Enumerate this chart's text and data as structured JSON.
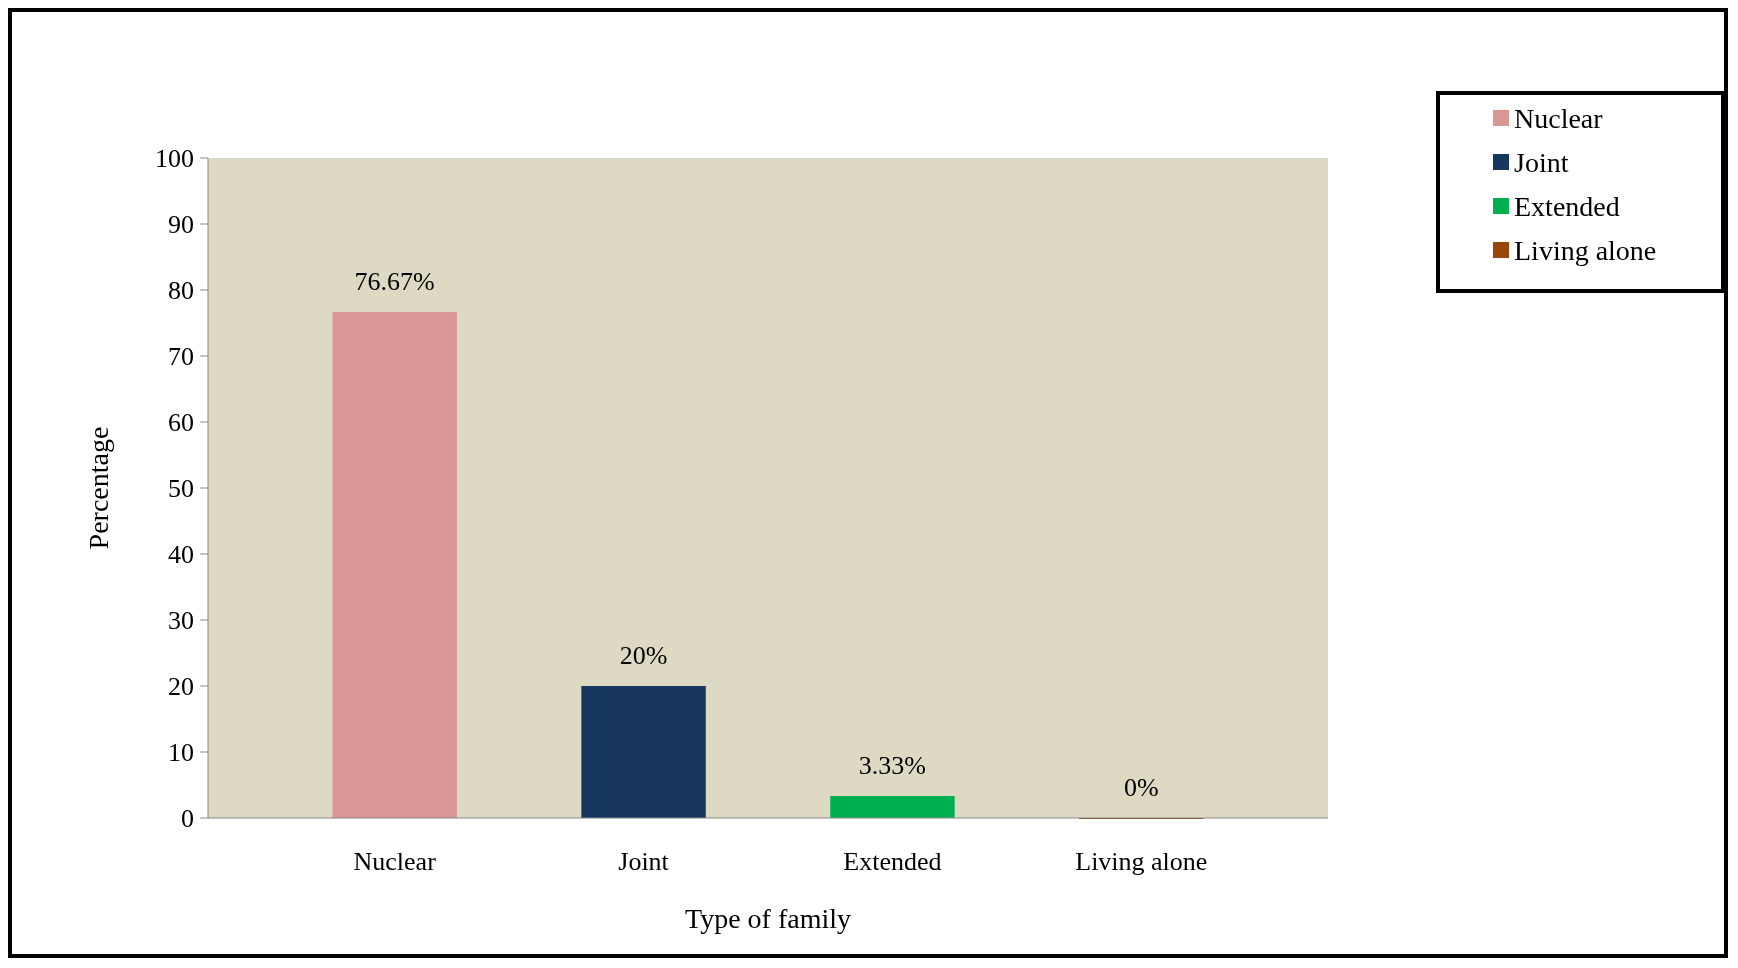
{
  "chart_data": {
    "type": "bar",
    "categories": [
      "Nuclear",
      "Joint",
      "Extended",
      "Living alone"
    ],
    "series": [
      {
        "name": "Nuclear",
        "color": "#da9694",
        "values": [
          76.67,
          null,
          null,
          null
        ],
        "value_labels": [
          "76.67%",
          null,
          null,
          null
        ]
      },
      {
        "name": "Joint",
        "color": "#17375e",
        "values": [
          null,
          20,
          null,
          null
        ],
        "value_labels": [
          null,
          "20%",
          null,
          null
        ]
      },
      {
        "name": "Extended",
        "color": "#00b050",
        "values": [
          null,
          null,
          3.33,
          null
        ],
        "value_labels": [
          null,
          null,
          "3.33%",
          null
        ]
      },
      {
        "name": "Living alone",
        "color": "#974706",
        "values": [
          null,
          null,
          null,
          0
        ],
        "value_labels": [
          null,
          null,
          null,
          "0%"
        ]
      }
    ],
    "xlabel": "Type of family",
    "ylabel": "Percentage",
    "ylim": [
      0,
      100
    ],
    "yticks": [
      0,
      10,
      20,
      30,
      40,
      50,
      60,
      70,
      80,
      90,
      100
    ],
    "grid": false,
    "legend": "top right"
  }
}
